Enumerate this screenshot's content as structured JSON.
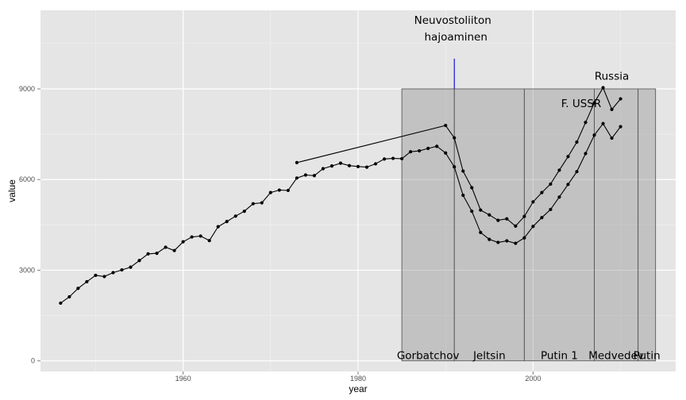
{
  "chart_data": {
    "type": "line",
    "xlabel": "year",
    "ylabel": "value",
    "xlim": [
      1943.7,
      2016.3
    ],
    "ylim": [
      -350,
      11600
    ],
    "x_ticks": [
      1960,
      1980,
      2000
    ],
    "y_ticks": [
      0,
      3000,
      6000,
      9000
    ],
    "y_tick_labels": [
      "0",
      "3000",
      "6000",
      "9000"
    ],
    "x_tick_labels": [
      "1960",
      "1980",
      "2000"
    ],
    "grid": true,
    "background": "#e5e5e5",
    "periods": [
      {
        "label": "Gorbatchov",
        "start": 1985,
        "end": 1991
      },
      {
        "label": "Jeltsin",
        "start": 1991,
        "end": 1999
      },
      {
        "label": "Putin 1",
        "start": 1999,
        "end": 2007
      },
      {
        "label": "Medvedev",
        "start": 2007,
        "end": 2012
      },
      {
        "label": "Putin",
        "start": 2012,
        "end": 2014
      }
    ],
    "period_top": 9000,
    "event": {
      "label_line1": "Neuvostoliiton",
      "label_line2": "hajoaminen",
      "x": 1991,
      "y_from": 9000,
      "y_to": 10000,
      "color": "#0000cc"
    },
    "series": [
      {
        "name": "F. USSR",
        "label_x": 2005.5,
        "label_y": 8400,
        "x": [
          1946,
          1947,
          1948,
          1949,
          1950,
          1951,
          1952,
          1953,
          1954,
          1955,
          1956,
          1957,
          1958,
          1959,
          1960,
          1961,
          1962,
          1963,
          1964,
          1965,
          1966,
          1967,
          1968,
          1969,
          1970,
          1971,
          1972,
          1973,
          1974,
          1975,
          1976,
          1977,
          1978,
          1979,
          1980,
          1981,
          1982,
          1983,
          1984,
          1985,
          1986,
          1987,
          1988,
          1989,
          1990,
          1991,
          1992,
          1993,
          1994,
          1995,
          1996,
          1997,
          1998,
          1999,
          2000,
          2001,
          2002,
          2003,
          2004,
          2005,
          2006,
          2007,
          2008,
          2009,
          2010
        ],
        "values": [
          1910,
          2120,
          2400,
          2620,
          2830,
          2790,
          2920,
          3010,
          3100,
          3320,
          3540,
          3560,
          3760,
          3650,
          3940,
          4100,
          4130,
          3980,
          4440,
          4610,
          4790,
          4950,
          5200,
          5230,
          5570,
          5650,
          5640,
          6050,
          6150,
          6130,
          6360,
          6450,
          6540,
          6460,
          6430,
          6410,
          6520,
          6680,
          6700,
          6690,
          6920,
          6950,
          7030,
          7100,
          6880,
          6420,
          5480,
          4950,
          4250,
          4020,
          3920,
          3970,
          3890,
          4070,
          4450,
          4740,
          5010,
          5420,
          5840,
          6260,
          6860,
          7470,
          7850,
          7370,
          7750
        ]
      },
      {
        "name": "Russia",
        "label_x": 2009,
        "label_y": 9300,
        "x": [
          1973,
          1990,
          1991,
          1992,
          1993,
          1994,
          1995,
          1996,
          1997,
          1998,
          1999,
          2000,
          2001,
          2002,
          2003,
          2004,
          2005,
          2006,
          2007,
          2008,
          2009,
          2010
        ],
        "values": [
          6560,
          7790,
          7380,
          6280,
          5730,
          4990,
          4830,
          4650,
          4700,
          4460,
          4780,
          5260,
          5570,
          5850,
          6310,
          6760,
          7240,
          7890,
          8540,
          9040,
          8320,
          8670
        ]
      }
    ]
  }
}
